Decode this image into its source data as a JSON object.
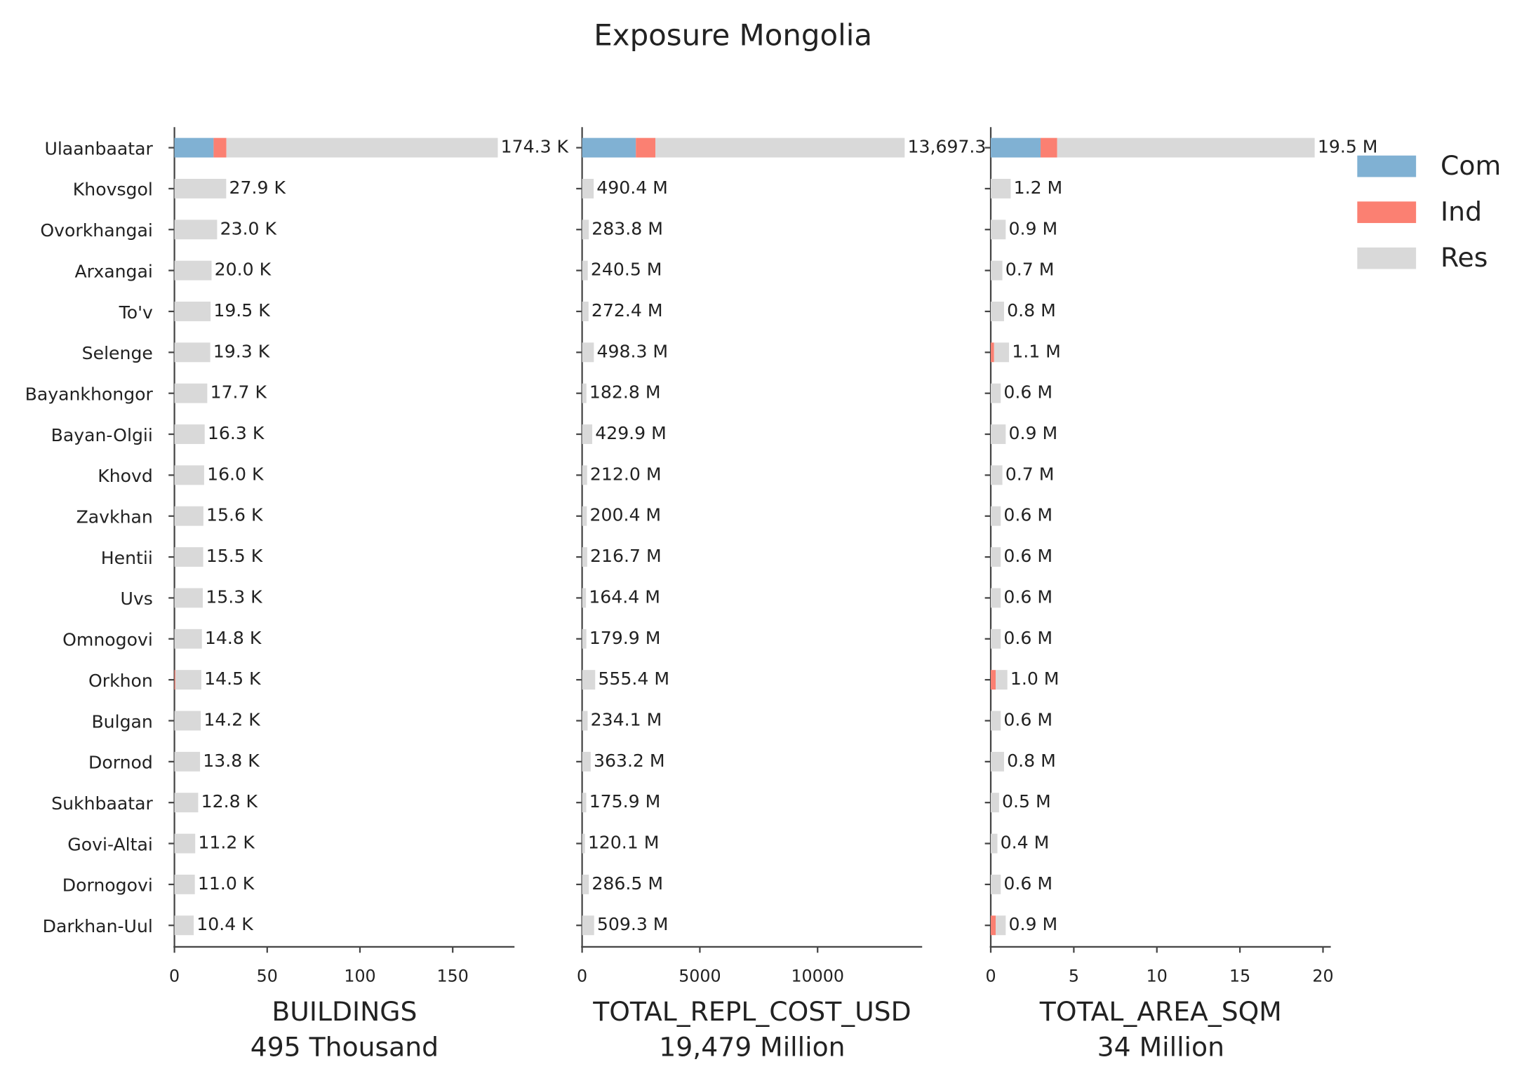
{
  "chart_data": {
    "type": "bar",
    "orientation": "horizontal",
    "title": "Exposure Mongolia",
    "categories": [
      "Ulaanbaatar",
      "Khovsgol",
      "Ovorkhangai",
      "Arxangai",
      "To'v",
      "Selenge",
      "Bayankhongor",
      "Bayan-Olgii",
      "Khovd",
      "Zavkhan",
      "Hentii",
      "Uvs",
      "Omnogovi",
      "Orkhon",
      "Bulgan",
      "Dornod",
      "Sukhbaatar",
      "Govi-Altai",
      "Dornogovi",
      "Darkhan-Uul"
    ],
    "panels": [
      {
        "xlabel": "BUILDINGS",
        "sublabel": "495 Thousand",
        "xlim": [
          0,
          183.3
        ],
        "xticks": [
          0,
          50,
          100,
          150
        ],
        "series": [
          {
            "name": "Com",
            "color": "#80b1d3",
            "values": [
              21.1,
              0,
              0,
              0,
              0,
              0,
              0,
              0,
              0,
              0,
              0,
              0,
              0,
              0,
              0,
              0,
              0,
              0,
              0,
              0
            ]
          },
          {
            "name": "Ind",
            "color": "#fb8072",
            "values": [
              6.9,
              0,
              0,
              0,
              0,
              0,
              0,
              0,
              0,
              0,
              0,
              0,
              0,
              0.5,
              0,
              0,
              0,
              0,
              0,
              0
            ]
          },
          {
            "name": "Res",
            "color": "#d9d9d9",
            "values": [
              146.3,
              27.9,
              23.0,
              20.0,
              19.5,
              19.3,
              17.7,
              16.3,
              16.0,
              15.6,
              15.5,
              15.3,
              14.8,
              14.0,
              14.2,
              13.8,
              12.8,
              11.2,
              11.0,
              10.4
            ]
          }
        ],
        "totals": [
          174.3,
          27.9,
          23.0,
          20.0,
          19.5,
          19.3,
          17.7,
          16.3,
          16.0,
          15.6,
          15.5,
          15.3,
          14.8,
          14.5,
          14.2,
          13.8,
          12.8,
          11.2,
          11.0,
          10.4
        ],
        "total_labels": [
          "174.3 K",
          "27.9 K",
          "23.0 K",
          "20.0 K",
          "19.5 K",
          "19.3 K",
          "17.7 K",
          "16.3 K",
          "16.0 K",
          "15.6 K",
          "15.5 K",
          "15.3 K",
          "14.8 K",
          "14.5 K",
          "14.2 K",
          "13.8 K",
          "12.8 K",
          "11.2 K",
          "11.0 K",
          "10.4 K"
        ]
      },
      {
        "xlabel": "TOTAL_REPL_COST_USD",
        "sublabel": "19,479 Million",
        "xlim": [
          0,
          14440
        ],
        "xticks": [
          0,
          5000,
          10000
        ],
        "series": [
          {
            "name": "Com",
            "color": "#80b1d3",
            "values": [
              2282,
              0,
              0,
              0,
              0,
              0,
              0,
              0,
              0,
              0,
              0,
              0,
              0,
              0,
              0,
              0,
              0,
              0,
              0,
              0
            ]
          },
          {
            "name": "Ind",
            "color": "#fb8072",
            "values": [
              830,
              0,
              0,
              0,
              0,
              0,
              0,
              0,
              0,
              0,
              0,
              0,
              0,
              0,
              0,
              0,
              0,
              0,
              0,
              0
            ]
          },
          {
            "name": "Res",
            "color": "#d9d9d9",
            "values": [
              10585.3,
              490.4,
              283.8,
              240.5,
              272.4,
              498.3,
              182.8,
              429.9,
              212.0,
              200.4,
              216.7,
              164.4,
              179.9,
              555.4,
              234.1,
              363.2,
              175.9,
              120.1,
              286.5,
              509.3
            ]
          }
        ],
        "totals": [
          13697.3,
          490.4,
          283.8,
          240.5,
          272.4,
          498.3,
          182.8,
          429.9,
          212.0,
          200.4,
          216.7,
          164.4,
          179.9,
          555.4,
          234.1,
          363.2,
          175.9,
          120.1,
          286.5,
          509.3
        ],
        "total_labels": [
          "13,697.3",
          "490.4 M",
          "283.8 M",
          "240.5 M",
          "272.4 M",
          "498.3 M",
          "182.8 M",
          "429.9 M",
          "212.0 M",
          "200.4 M",
          "216.7 M",
          "164.4 M",
          "179.9 M",
          "555.4 M",
          "234.1 M",
          "363.2 M",
          "175.9 M",
          "120.1 M",
          "286.5 M",
          "509.3 M"
        ]
      },
      {
        "xlabel": "TOTAL_AREA_SQM",
        "sublabel": "34 Million",
        "xlim": [
          0,
          20.47
        ],
        "xticks": [
          0,
          5,
          10,
          15,
          20
        ],
        "series": [
          {
            "name": "Com",
            "color": "#80b1d3",
            "values": [
              3.0,
              0,
              0,
              0,
              0,
              0,
              0,
              0,
              0,
              0,
              0,
              0,
              0,
              0,
              0,
              0,
              0,
              0,
              0,
              0
            ]
          },
          {
            "name": "Ind",
            "color": "#fb8072",
            "values": [
              1.0,
              0,
              0,
              0,
              0,
              0.2,
              0,
              0,
              0,
              0,
              0,
              0,
              0,
              0.3,
              0,
              0,
              0,
              0,
              0,
              0.3
            ]
          },
          {
            "name": "Res",
            "color": "#d9d9d9",
            "values": [
              15.5,
              1.2,
              0.9,
              0.7,
              0.8,
              0.9,
              0.6,
              0.9,
              0.7,
              0.6,
              0.6,
              0.6,
              0.6,
              0.7,
              0.6,
              0.8,
              0.5,
              0.4,
              0.6,
              0.6
            ]
          }
        ],
        "totals": [
          19.5,
          1.2,
          0.9,
          0.7,
          0.8,
          1.1,
          0.6,
          0.9,
          0.7,
          0.6,
          0.6,
          0.6,
          0.6,
          1.0,
          0.6,
          0.8,
          0.5,
          0.4,
          0.6,
          0.9
        ],
        "total_labels": [
          "19.5 M",
          "1.2 M",
          "0.9 M",
          "0.7 M",
          "0.8 M",
          "1.1 M",
          "0.6 M",
          "0.9 M",
          "0.7 M",
          "0.6 M",
          "0.6 M",
          "0.6 M",
          "0.6 M",
          "1.0 M",
          "0.6 M",
          "0.8 M",
          "0.5 M",
          "0.4 M",
          "0.6 M",
          "0.9 M"
        ]
      }
    ]
  }
}
